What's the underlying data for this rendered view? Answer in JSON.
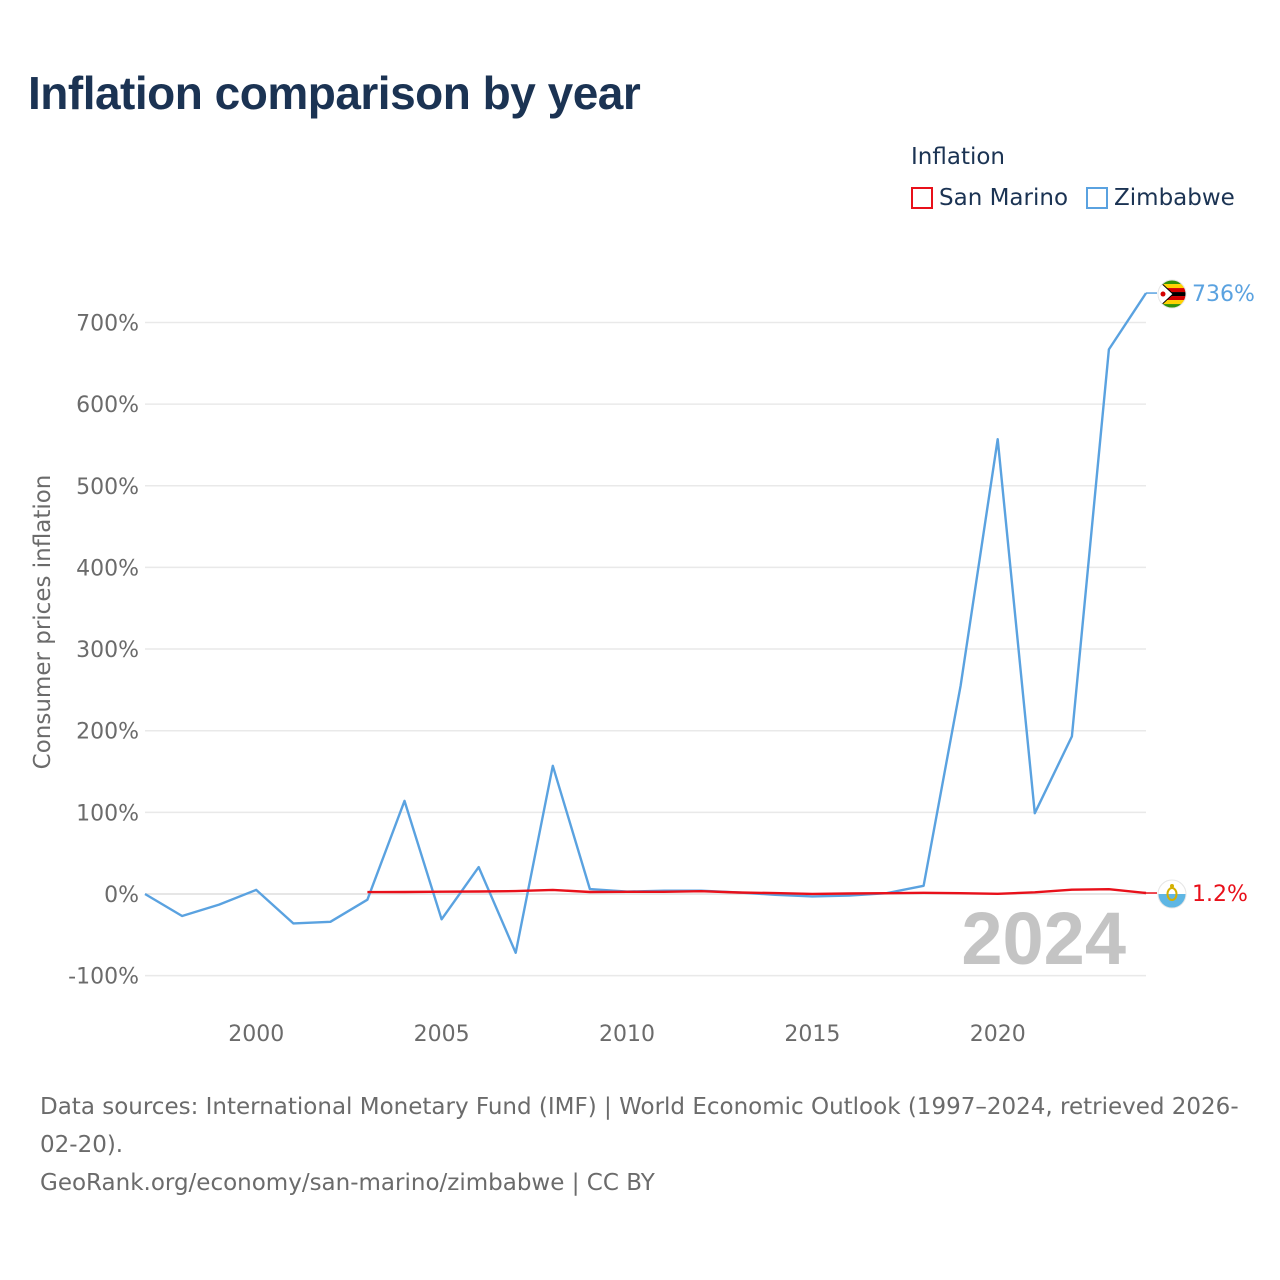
{
  "title": "Inflation comparison by year",
  "legend": {
    "title": "Inflation",
    "items": [
      {
        "label": "San Marino",
        "color": "#e8101a"
      },
      {
        "label": "Zimbabwe",
        "color": "#5aa2e0"
      }
    ]
  },
  "chart_data": {
    "type": "line",
    "title": "Inflation comparison by year",
    "xlabel": "",
    "ylabel": "Consumer prices inflation",
    "xlim": [
      1997,
      2024
    ],
    "ylim": [
      -100,
      750
    ],
    "x_ticks": [
      2000,
      2005,
      2010,
      2015,
      2020
    ],
    "y_ticks": [
      -100,
      0,
      100,
      200,
      300,
      400,
      500,
      600,
      700
    ],
    "y_tick_labels": [
      "-100%",
      "0%",
      "100%",
      "200%",
      "300%",
      "400%",
      "500%",
      "600%",
      "700%"
    ],
    "year_watermark": "2024",
    "series": [
      {
        "name": "San Marino",
        "color": "#e8101a",
        "end_label": "1.2%",
        "flag_icon": "san-marino-flag-icon",
        "x": [
          2003,
          2004,
          2005,
          2006,
          2007,
          2008,
          2009,
          2010,
          2011,
          2012,
          2013,
          2014,
          2015,
          2016,
          2017,
          2018,
          2019,
          2020,
          2021,
          2022,
          2023,
          2024
        ],
        "values": [
          2.3,
          2.5,
          2.8,
          3.1,
          3.5,
          5.0,
          2.5,
          2.7,
          2.7,
          3.4,
          1.8,
          1.1,
          0.1,
          0.6,
          1.0,
          1.5,
          1.0,
          0.2,
          2.1,
          5.3,
          5.9,
          1.2
        ]
      },
      {
        "name": "Zimbabwe",
        "color": "#5aa2e0",
        "end_label": "736%",
        "flag_icon": "zimbabwe-flag-icon",
        "x": [
          1997,
          1998,
          1999,
          2000,
          2001,
          2002,
          2003,
          2004,
          2005,
          2006,
          2007,
          2008,
          2009,
          2010,
          2011,
          2012,
          2013,
          2014,
          2015,
          2016,
          2017,
          2018,
          2019,
          2020,
          2021,
          2022,
          2023,
          2024
        ],
        "values": [
          0,
          -27,
          -13,
          5,
          -36,
          -34,
          -7,
          114,
          -31,
          33,
          -72,
          157,
          6,
          3,
          4,
          4,
          2,
          -1,
          -3,
          -2,
          1,
          10,
          255,
          557,
          99,
          193,
          667,
          736
        ]
      }
    ]
  },
  "footer": {
    "line1": "Data sources: International Monetary Fund (IMF) | World Economic Outlook (1997–2024, retrieved 2026-02-20).",
    "line2": "GeoRank.org/economy/san-marino/zimbabwe | CC BY"
  }
}
